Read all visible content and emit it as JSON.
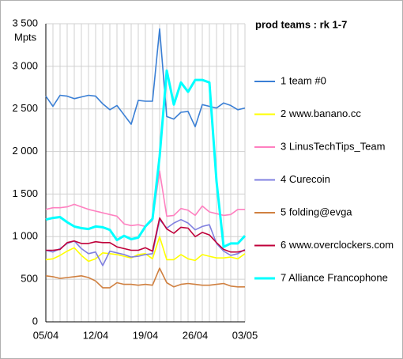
{
  "chart_data": {
    "type": "line",
    "title": "prod teams : rk 1-7",
    "y_label": "Mpts",
    "categories": [
      "05/04",
      null,
      null,
      null,
      null,
      null,
      null,
      "12/04",
      null,
      null,
      null,
      null,
      null,
      null,
      "19/04",
      null,
      null,
      null,
      null,
      null,
      null,
      "26/04",
      null,
      null,
      null,
      null,
      null,
      null,
      "03/05"
    ],
    "ylim": [
      0,
      3500
    ],
    "yticks": [
      0,
      500,
      {
        "value": 1000,
        "label": "1 000"
      },
      {
        "value": 1500,
        "label": "1 500"
      },
      {
        "value": 2000,
        "label": "2 000"
      },
      {
        "value": 2500,
        "label": "2 500"
      },
      {
        "value": 3000,
        "label": "3 000"
      },
      {
        "value": 3500,
        "label": "3 500"
      }
    ],
    "grid": true,
    "legend": "right",
    "series": [
      {
        "name": "1 team #0",
        "color": "#3a7fd5",
        "values": [
          2650,
          2530,
          2660,
          2650,
          2620,
          2640,
          2660,
          2650,
          2560,
          2490,
          2540,
          2430,
          2320,
          2600,
          2590,
          2590,
          3440,
          2410,
          2380,
          2460,
          2470,
          2290,
          2550,
          2530,
          2510,
          2570,
          2540,
          2490,
          2510
        ]
      },
      {
        "name": "2 www.banano.cc",
        "color": "#ffff00",
        "values": [
          730,
          740,
          780,
          830,
          870,
          780,
          710,
          740,
          810,
          800,
          790,
          770,
          750,
          790,
          800,
          740,
          1000,
          730,
          730,
          790,
          740,
          720,
          790,
          770,
          750,
          750,
          760,
          740,
          800
        ]
      },
      {
        "name": "3 LinusTechTips_Team",
        "color": "#ff80c0",
        "values": [
          1320,
          1340,
          1340,
          1350,
          1380,
          1350,
          1320,
          1300,
          1280,
          1260,
          1240,
          1150,
          1130,
          1140,
          1120,
          1190,
          1770,
          1240,
          1250,
          1330,
          1310,
          1250,
          1360,
          1290,
          1270,
          1250,
          1260,
          1320,
          1320
        ]
      },
      {
        "name": "4 Curecoin",
        "color": "#8080e0",
        "values": [
          840,
          820,
          860,
          920,
          950,
          860,
          800,
          820,
          660,
          830,
          810,
          790,
          760,
          770,
          790,
          800,
          1200,
          1100,
          1160,
          1200,
          1160,
          1080,
          1120,
          1140,
          920,
          830,
          780,
          800,
          850
        ]
      },
      {
        "name": "5 folding@evga",
        "color": "#d08040",
        "values": [
          540,
          530,
          510,
          520,
          530,
          540,
          520,
          480,
          400,
          400,
          460,
          440,
          440,
          430,
          440,
          430,
          630,
          460,
          410,
          440,
          450,
          440,
          430,
          430,
          440,
          450,
          420,
          410,
          410
        ]
      },
      {
        "name": "6 www.overclockers.com",
        "color": "#c0003a",
        "values": [
          840,
          840,
          850,
          930,
          950,
          920,
          920,
          940,
          930,
          930,
          880,
          860,
          840,
          840,
          870,
          830,
          1220,
          1090,
          1040,
          1110,
          1100,
          1000,
          1050,
          1020,
          930,
          850,
          820,
          820,
          840
        ]
      },
      {
        "name": "7 Alliance Francophone",
        "color": "#00ffff",
        "values": [
          1200,
          1220,
          1230,
          1170,
          1120,
          1100,
          1090,
          1120,
          1110,
          1080,
          960,
          1010,
          970,
          990,
          1120,
          1210,
          1940,
          2950,
          2550,
          2810,
          2700,
          2840,
          2840,
          2810,
          1650,
          880,
          920,
          920,
          1010
        ]
      }
    ]
  }
}
